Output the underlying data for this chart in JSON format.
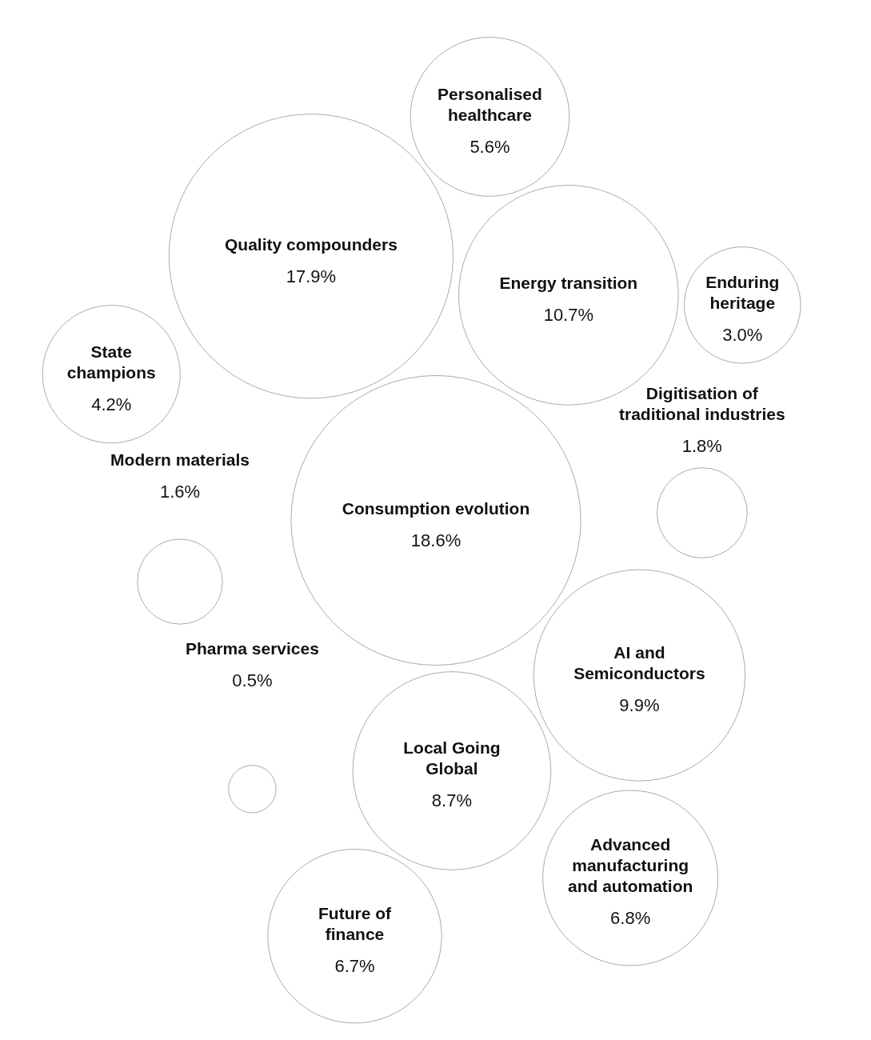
{
  "chart_data": {
    "type": "other",
    "categories": [
      "Pharma services",
      "Personalised healthcare",
      "Modern materials",
      "Consumption evolution",
      "Local Going Global",
      "AI and Semiconductors",
      "Quality compounders",
      "Energy transition",
      "Advanced manufacturing and automation",
      "State champions",
      "Enduring heritage",
      "Future of finance",
      "Digitisation of traditional industries"
    ],
    "values": [
      0.5,
      5.6,
      1.6,
      18.6,
      8.7,
      9.9,
      17.9,
      10.7,
      6.8,
      4.2,
      3.0,
      6.7,
      1.8
    ],
    "value_labels": [
      "0.5%",
      "5.6%",
      "1.6%",
      "18.6%",
      "8.7%",
      "9.9%",
      "17.9%",
      "10.7%",
      "6.8%",
      "4.2%",
      "3.0%",
      "6.7%",
      "1.8%"
    ],
    "color": "#aaaaaa"
  }
}
